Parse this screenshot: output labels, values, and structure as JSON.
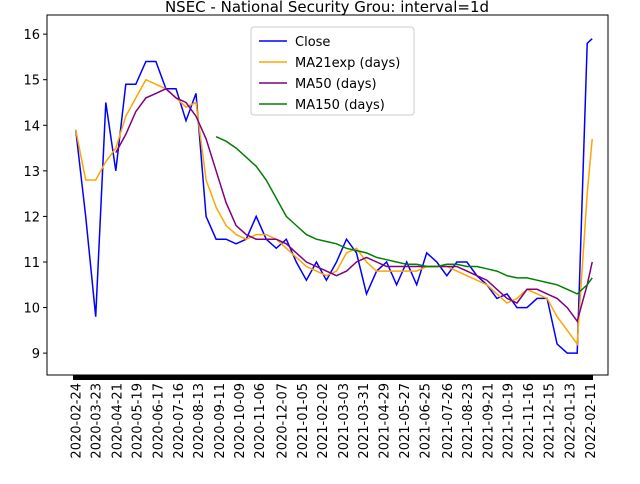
{
  "chart_data": {
    "type": "line",
    "title": "NSEC - National Security Grou: interval=1d",
    "x": [
      "2020-02-24",
      "2020-03-09",
      "2020-03-23",
      "2020-04-06",
      "2020-04-20",
      "2020-05-04",
      "2020-05-18",
      "2020-06-01",
      "2020-06-15",
      "2020-06-29",
      "2020-07-13",
      "2020-07-27",
      "2020-08-10",
      "2020-08-24",
      "2020-09-07",
      "2020-09-21",
      "2020-10-05",
      "2020-10-19",
      "2020-11-02",
      "2020-11-16",
      "2020-11-30",
      "2020-12-14",
      "2020-12-28",
      "2021-01-11",
      "2021-01-25",
      "2021-02-08",
      "2021-02-22",
      "2021-03-08",
      "2021-03-22",
      "2021-04-05",
      "2021-04-19",
      "2021-05-03",
      "2021-05-17",
      "2021-05-31",
      "2021-06-14",
      "2021-06-28",
      "2021-07-12",
      "2021-07-26",
      "2021-08-09",
      "2021-08-23",
      "2021-09-06",
      "2021-09-20",
      "2021-10-04",
      "2021-10-18",
      "2021-11-01",
      "2021-11-15",
      "2021-11-29",
      "2021-12-13",
      "2021-12-27",
      "2022-01-10",
      "2022-01-24",
      "2022-02-07",
      "2022-02-14"
    ],
    "series": [
      {
        "name": "Close",
        "color": "#0000ff",
        "values": [
          13.9,
          12.0,
          9.8,
          14.5,
          13.0,
          14.9,
          14.9,
          15.4,
          15.4,
          14.8,
          14.8,
          14.1,
          14.7,
          12.0,
          11.5,
          11.5,
          11.4,
          11.5,
          12.0,
          11.5,
          11.3,
          11.5,
          11.0,
          10.6,
          11.0,
          10.6,
          11.0,
          11.5,
          11.2,
          10.3,
          10.8,
          11.0,
          10.5,
          11.0,
          10.5,
          11.2,
          11.0,
          10.7,
          11.0,
          11.0,
          10.7,
          10.5,
          10.2,
          10.3,
          10.0,
          10.0,
          10.2,
          10.2,
          9.2,
          9.0,
          9.0,
          15.8,
          15.9
        ]
      },
      {
        "name": "MA21exp (days)",
        "color": "#ffa500",
        "values": [
          13.9,
          12.8,
          12.8,
          13.2,
          13.5,
          14.2,
          14.6,
          15.0,
          14.9,
          14.8,
          14.6,
          14.4,
          14.5,
          12.8,
          12.2,
          11.8,
          11.6,
          11.5,
          11.6,
          11.6,
          11.5,
          11.3,
          11.1,
          10.9,
          10.8,
          10.7,
          10.8,
          11.2,
          11.3,
          11.0,
          10.8,
          10.8,
          10.8,
          10.8,
          10.8,
          10.9,
          10.9,
          10.9,
          10.8,
          10.7,
          10.6,
          10.5,
          10.3,
          10.1,
          10.2,
          10.4,
          10.3,
          10.2,
          9.8,
          9.5,
          9.2,
          12.5,
          13.7
        ]
      },
      {
        "name": "MA50 (days)",
        "color": "#800080",
        "values": [
          null,
          null,
          null,
          null,
          13.4,
          13.8,
          14.3,
          14.6,
          14.7,
          14.8,
          14.6,
          14.5,
          14.2,
          13.7,
          13.0,
          12.3,
          11.8,
          11.6,
          11.5,
          11.5,
          11.5,
          11.4,
          11.2,
          11.0,
          10.9,
          10.8,
          10.7,
          10.8,
          11.0,
          11.1,
          11.0,
          10.9,
          10.9,
          10.9,
          10.9,
          10.9,
          10.9,
          10.9,
          10.9,
          10.8,
          10.7,
          10.6,
          10.4,
          10.2,
          10.1,
          10.4,
          10.4,
          10.3,
          10.2,
          10.0,
          9.7,
          10.5,
          11.0
        ]
      },
      {
        "name": "MA150 (days)",
        "color": "#008000",
        "values": [
          null,
          null,
          null,
          null,
          null,
          null,
          null,
          null,
          null,
          null,
          null,
          null,
          null,
          null,
          13.75,
          13.65,
          13.5,
          13.3,
          13.1,
          12.8,
          12.4,
          12.0,
          11.8,
          11.6,
          11.5,
          11.45,
          11.4,
          11.3,
          11.25,
          11.2,
          11.1,
          11.05,
          11.0,
          10.95,
          10.95,
          10.9,
          10.9,
          10.95,
          10.95,
          10.9,
          10.9,
          10.85,
          10.8,
          10.7,
          10.65,
          10.65,
          10.6,
          10.55,
          10.5,
          10.4,
          10.3,
          10.5,
          10.65
        ]
      }
    ],
    "xlim": [
      "2020-01-15",
      "2022-03-08"
    ],
    "xticks": [
      "2020-02-24",
      "2020-03-23",
      "2020-04-21",
      "2020-05-19",
      "2020-06-17",
      "2020-07-16",
      "2020-08-13",
      "2020-09-11",
      "2020-10-09",
      "2020-11-06",
      "2020-12-07",
      "2021-01-05",
      "2021-02-02",
      "2021-03-03",
      "2021-03-31",
      "2021-04-29",
      "2021-05-27",
      "2021-06-25",
      "2021-07-26",
      "2021-08-23",
      "2021-09-21",
      "2021-10-19",
      "2021-11-16",
      "2021-12-15",
      "2022-01-13",
      "2022-02-11"
    ],
    "ylim": [
      8.52,
      16.42
    ],
    "yticks": [
      9,
      10,
      11,
      12,
      13,
      14,
      15,
      16
    ],
    "legend": "upper center"
  }
}
